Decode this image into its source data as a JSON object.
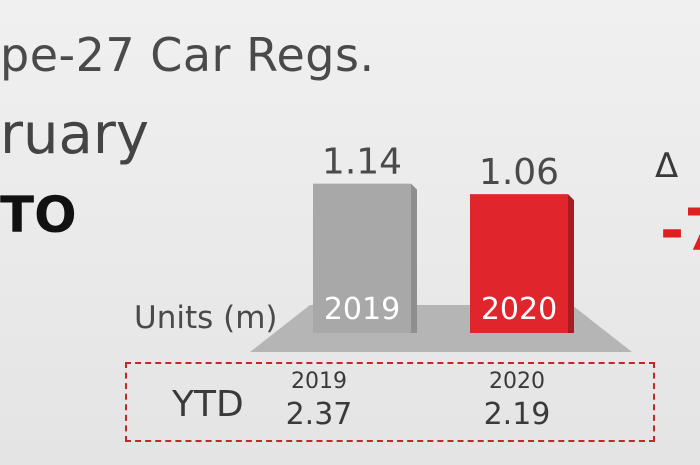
{
  "header": {
    "title": "pe-27 Car Regs.",
    "subtitle": "ruary",
    "region": "TO",
    "delta_symbol": "Δ",
    "delta_value": "-7"
  },
  "chart_data": {
    "type": "bar",
    "categories": [
      "2019",
      "2020"
    ],
    "values": [
      1.14,
      1.06
    ],
    "value_labels": [
      "1.14",
      "1.06"
    ],
    "ylabel": "Units (m)",
    "ylim": [
      0,
      1.3
    ],
    "colors": [
      "#a8a8a8",
      "#e0262c"
    ]
  },
  "ytd": {
    "label": "YTD",
    "columns": [
      {
        "year": "2019",
        "value": "2.37"
      },
      {
        "year": "2020",
        "value": "2.19"
      }
    ]
  }
}
